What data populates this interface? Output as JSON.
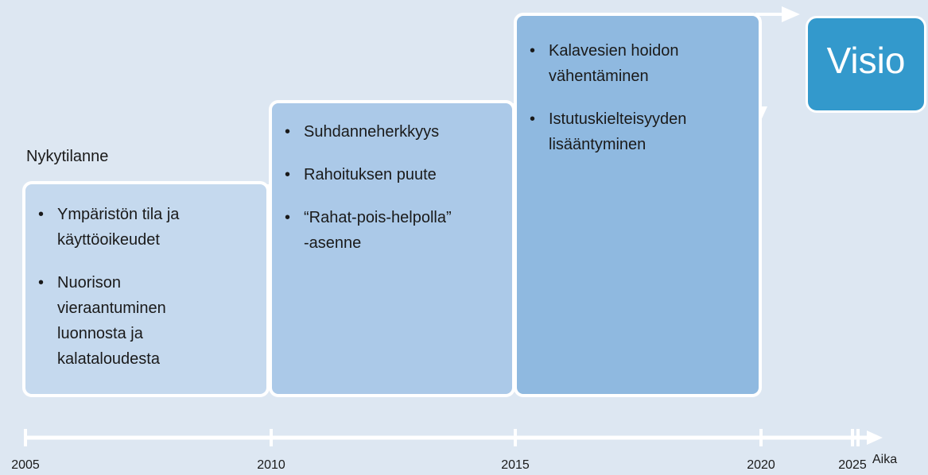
{
  "current_label": "Nykytilanne",
  "phases": [
    {
      "items": [
        {
          "lines": [
            "Ympäristön tila ja",
            "käyttöoikeudet"
          ]
        },
        {
          "lines": [
            "Nuorison",
            "vieraantuminen",
            "luonnosta ja",
            "kalataloudesta"
          ]
        }
      ]
    },
    {
      "items": [
        {
          "lines": [
            "Suhdanneherkkyys"
          ]
        },
        {
          "lines": [
            "Rahoituksen puute"
          ]
        },
        {
          "lines": [
            "“Rahat-pois-helpolla”",
            "-asenne"
          ]
        }
      ]
    },
    {
      "items": [
        {
          "lines": [
            "Kalavesien hoidon",
            "vähentäminen"
          ]
        },
        {
          "lines": [
            "Istutuskielteisyyden",
            "lisääntyminen"
          ]
        }
      ]
    }
  ],
  "vision": "Visio",
  "axis": {
    "label": "Aika",
    "years": [
      "2005",
      "2010",
      "2015",
      "2020",
      "2025"
    ]
  }
}
